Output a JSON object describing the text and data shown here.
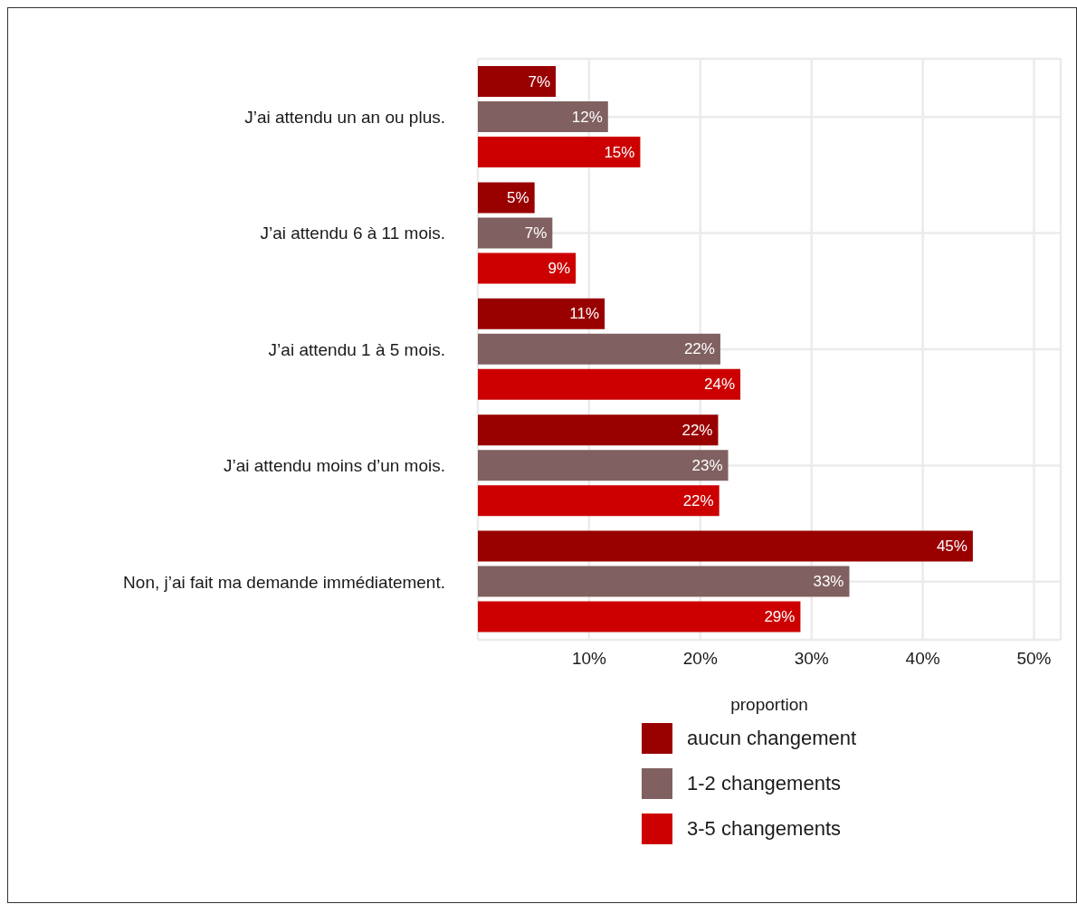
{
  "chart_data": {
    "type": "bar",
    "orientation": "horizontal",
    "xlabel": "proportion",
    "categories": [
      "J’ai attendu un an ou plus.",
      "J’ai attendu 6 à 11 mois.",
      "J’ai attendu 1 à 5 mois.",
      "J’ai attendu moins d’un mois.",
      "Non, j’ai fait ma demande immédiatement."
    ],
    "series": [
      {
        "name": "aucun changement",
        "color": "#990000",
        "values": [
          7.0,
          5.1,
          11.4,
          21.6,
          44.5
        ],
        "value_labels": [
          "7%",
          "5%",
          "11%",
          "22%",
          "45%"
        ]
      },
      {
        "name": "1-2 changements",
        "color": "#806060",
        "values": [
          11.7,
          6.7,
          21.8,
          22.5,
          33.4
        ],
        "value_labels": [
          "12%",
          "7%",
          "22%",
          "23%",
          "33%"
        ]
      },
      {
        "name": "3-5 changements",
        "color": "#cc0000",
        "values": [
          14.6,
          8.8,
          23.6,
          21.7,
          29.0
        ],
        "value_labels": [
          "15%",
          "9%",
          "24%",
          "22%",
          "29%"
        ]
      }
    ],
    "xlim": [
      0,
      52.4
    ],
    "xticks": [
      {
        "value": 10,
        "label": "10%"
      },
      {
        "value": 20,
        "label": "20%"
      },
      {
        "value": 30,
        "label": "30%"
      },
      {
        "value": 40,
        "label": "40%"
      },
      {
        "value": 50,
        "label": "50%"
      }
    ],
    "grid": true,
    "legend": "bottom"
  }
}
